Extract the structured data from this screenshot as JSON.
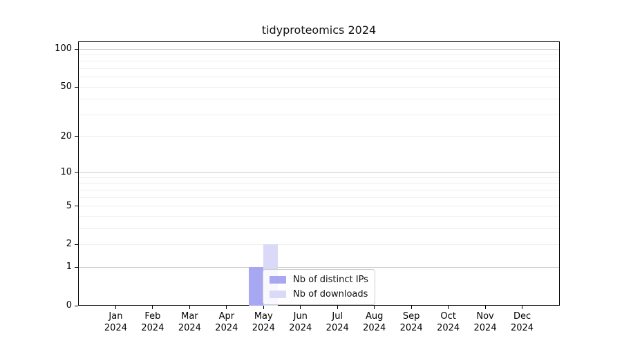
{
  "chart_data": {
    "type": "bar",
    "title": "tidyproteomics 2024",
    "xlabel": "",
    "ylabel": "",
    "categories": [
      "Jan 2024",
      "Feb 2024",
      "Mar 2024",
      "Apr 2024",
      "May 2024",
      "Jun 2024",
      "Jul 2024",
      "Aug 2024",
      "Sep 2024",
      "Oct 2024",
      "Nov 2024",
      "Dec 2024"
    ],
    "x_tick_labels": [
      {
        "month": "Jan",
        "year": "2024"
      },
      {
        "month": "Feb",
        "year": "2024"
      },
      {
        "month": "Mar",
        "year": "2024"
      },
      {
        "month": "Apr",
        "year": "2024"
      },
      {
        "month": "May",
        "year": "2024"
      },
      {
        "month": "Jun",
        "year": "2024"
      },
      {
        "month": "Jul",
        "year": "2024"
      },
      {
        "month": "Aug",
        "year": "2024"
      },
      {
        "month": "Sep",
        "year": "2024"
      },
      {
        "month": "Oct",
        "year": "2024"
      },
      {
        "month": "Nov",
        "year": "2024"
      },
      {
        "month": "Dec",
        "year": "2024"
      }
    ],
    "series": [
      {
        "name": "Nb of distinct IPs",
        "color": "#a7a7f2",
        "values": [
          0,
          0,
          0,
          0,
          1,
          0,
          0,
          0,
          0,
          0,
          0,
          0
        ]
      },
      {
        "name": "Nb of downloads",
        "color": "#dadaf8",
        "values": [
          0,
          0,
          0,
          0,
          2,
          0,
          0,
          0,
          0,
          0,
          0,
          0
        ]
      }
    ],
    "y_scale": "log1p",
    "y_axis_ticks": [
      0,
      1,
      2,
      5,
      10,
      20,
      50,
      100
    ],
    "y_gridlines_minor": [
      2,
      3,
      4,
      5,
      6,
      7,
      8,
      9,
      20,
      30,
      40,
      50,
      60,
      70,
      80,
      90
    ],
    "y_gridlines_major": [
      1,
      10,
      100
    ],
    "ylim": [
      0,
      113
    ],
    "grid": true,
    "legend_position": "lower center-right inside plot",
    "colors": {
      "axis": "#000000",
      "gridline_major": "#c9c9c9",
      "gridline_minor": "#efefef",
      "background": "#ffffff",
      "legend_border": "#cccccc"
    }
  }
}
